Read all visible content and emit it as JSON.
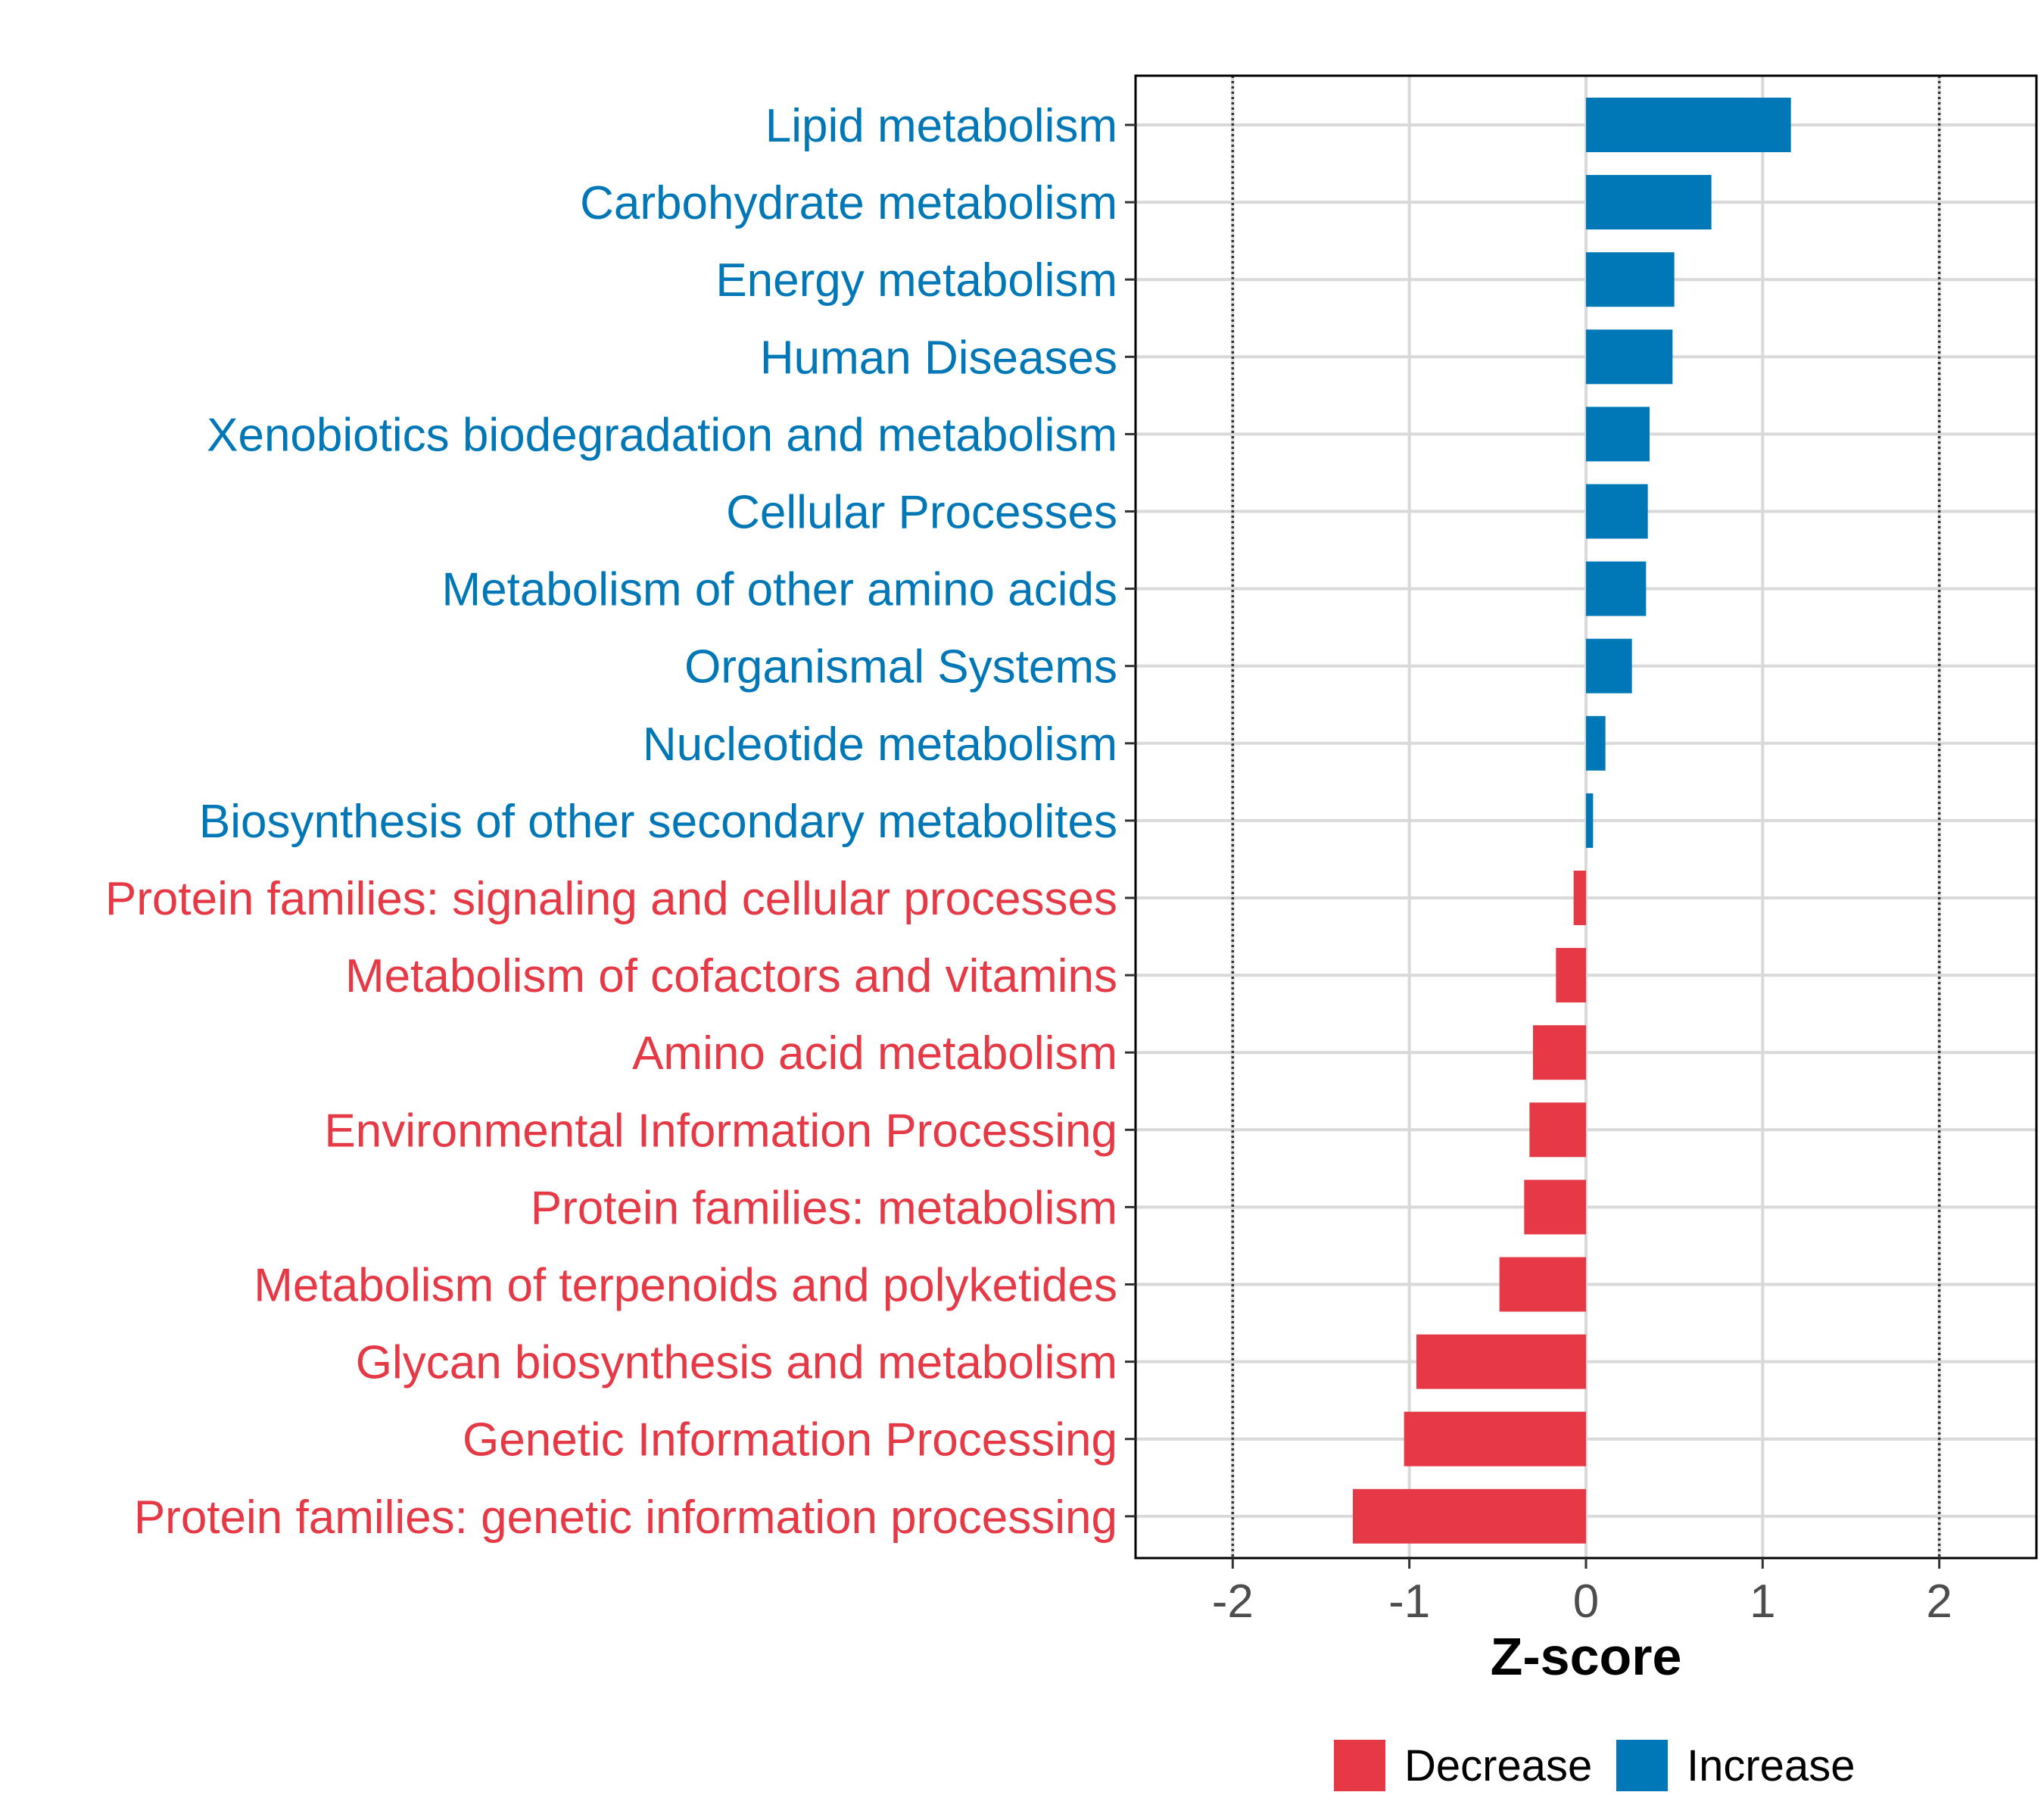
{
  "chart_data": {
    "type": "bar",
    "orientation": "horizontal",
    "categories": [
      "Lipid metabolism",
      "Carbohydrate metabolism",
      "Energy metabolism",
      "Human Diseases",
      "Xenobiotics biodegradation and metabolism",
      "Cellular Processes",
      "Metabolism of other amino acids",
      "Organismal Systems",
      "Nucleotide metabolism",
      "Biosynthesis of other secondary metabolites",
      "Protein families: signaling and cellular processes",
      "Metabolism of cofactors and vitamins",
      "Amino acid metabolism",
      "Environmental Information Processing",
      "Protein families: metabolism",
      "Metabolism of terpenoids and polyketides",
      "Glycan biosynthesis and metabolism",
      "Genetic Information Processing",
      "Protein families: genetic information processing"
    ],
    "values": [
      1.16,
      0.71,
      0.5,
      0.49,
      0.36,
      0.35,
      0.34,
      0.26,
      0.11,
      0.04,
      -0.07,
      -0.17,
      -0.3,
      -0.32,
      -0.35,
      -0.49,
      -0.96,
      -1.03,
      -1.32
    ],
    "groups": [
      "Increase",
      "Increase",
      "Increase",
      "Increase",
      "Increase",
      "Increase",
      "Increase",
      "Increase",
      "Increase",
      "Increase",
      "Decrease",
      "Decrease",
      "Decrease",
      "Decrease",
      "Decrease",
      "Decrease",
      "Decrease",
      "Decrease",
      "Decrease"
    ],
    "xlim": [
      -2.55,
      2.55
    ],
    "xticks": [
      -2,
      -1,
      0,
      1,
      2
    ],
    "xtick_labels": [
      "-2",
      "-1",
      "0",
      "1",
      "2"
    ],
    "reference_lines": [
      -2,
      2
    ],
    "xlabel": "Z-score",
    "ylabel": "",
    "title": "",
    "grid": true,
    "legend": {
      "placement": "bottom",
      "entries": [
        {
          "label": "Decrease",
          "color": "#e63946"
        },
        {
          "label": "Increase",
          "color": "#0077b6"
        }
      ]
    },
    "colors": {
      "Decrease": "#e63946",
      "Increase": "#0077b6"
    }
  }
}
